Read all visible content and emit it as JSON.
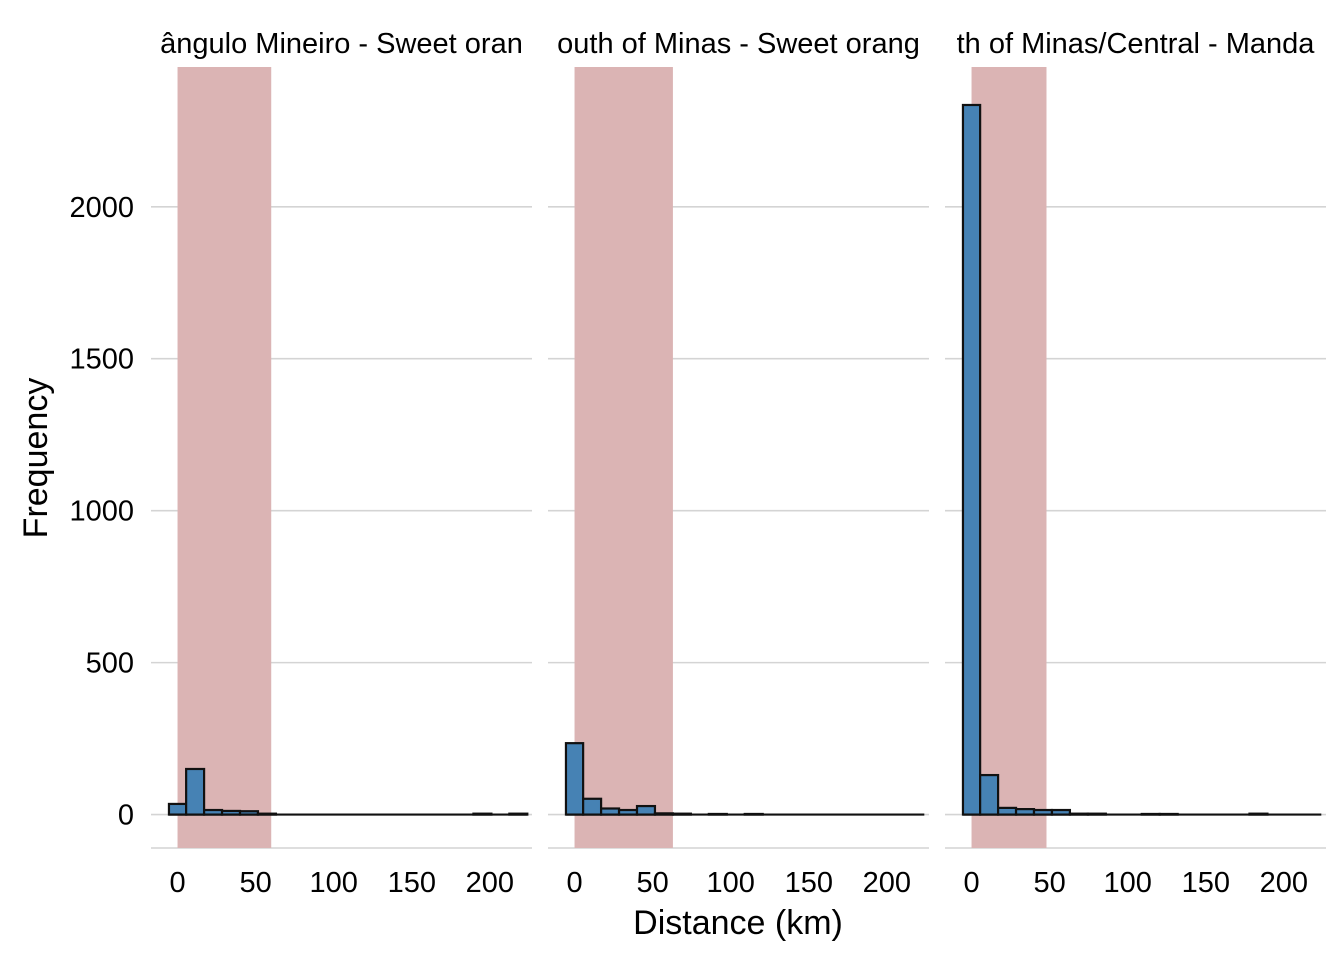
{
  "chart_data": {
    "type": "bar",
    "xlabel": "Distance (km)",
    "ylabel": "Frequency",
    "xlim": [
      -17,
      227
    ],
    "ylim": [
      -110,
      2460
    ],
    "x_ticks": [
      0,
      50,
      100,
      150,
      200
    ],
    "y_ticks": [
      0,
      500,
      1000,
      1500,
      2000
    ],
    "grid": true,
    "colors": {
      "bar_fill": "#4682B4",
      "highlight_band": "#DBB4B4"
    },
    "panels": [
      {
        "title": "Triângulo Mineiro - Sweet orange",
        "title_visible": "ângulo Mineiro - Sweet oran",
        "highlight_band": [
          0,
          60
        ],
        "bins": [
          {
            "x0": -5.5,
            "x1": 5.5,
            "count": 35
          },
          {
            "x0": 5.5,
            "x1": 17,
            "count": 150
          },
          {
            "x0": 17,
            "x1": 28.5,
            "count": 15
          },
          {
            "x0": 28.5,
            "x1": 40,
            "count": 12
          },
          {
            "x0": 40,
            "x1": 51.5,
            "count": 11
          },
          {
            "x0": 51.5,
            "x1": 63,
            "count": 3
          },
          {
            "x0": 63,
            "x1": 74.5,
            "count": 0
          },
          {
            "x0": 74.5,
            "x1": 86,
            "count": 0
          },
          {
            "x0": 86,
            "x1": 97.5,
            "count": 0
          },
          {
            "x0": 97.5,
            "x1": 109,
            "count": 0
          },
          {
            "x0": 109,
            "x1": 120.5,
            "count": 0
          },
          {
            "x0": 120.5,
            "x1": 132,
            "count": 0
          },
          {
            "x0": 132,
            "x1": 143.5,
            "count": 0
          },
          {
            "x0": 143.5,
            "x1": 155,
            "count": 0
          },
          {
            "x0": 155,
            "x1": 166.5,
            "count": 0
          },
          {
            "x0": 166.5,
            "x1": 178,
            "count": 0
          },
          {
            "x0": 178,
            "x1": 189.5,
            "count": 0
          },
          {
            "x0": 189.5,
            "x1": 201,
            "count": 3
          },
          {
            "x0": 201,
            "x1": 212.5,
            "count": 0
          },
          {
            "x0": 212.5,
            "x1": 224,
            "count": 3
          }
        ]
      },
      {
        "title": "South of Minas - Sweet orange",
        "title_visible": "outh of Minas - Sweet orang",
        "highlight_band": [
          0,
          63
        ],
        "bins": [
          {
            "x0": -5.5,
            "x1": 5.5,
            "count": 235
          },
          {
            "x0": 5.5,
            "x1": 17,
            "count": 52
          },
          {
            "x0": 17,
            "x1": 28.5,
            "count": 20
          },
          {
            "x0": 28.5,
            "x1": 40,
            "count": 15
          },
          {
            "x0": 40,
            "x1": 51.5,
            "count": 28
          },
          {
            "x0": 51.5,
            "x1": 63,
            "count": 4
          },
          {
            "x0": 63,
            "x1": 74.5,
            "count": 3
          },
          {
            "x0": 74.5,
            "x1": 86,
            "count": 0
          },
          {
            "x0": 86,
            "x1": 97.5,
            "count": 2
          },
          {
            "x0": 97.5,
            "x1": 109,
            "count": 0
          },
          {
            "x0": 109,
            "x1": 120.5,
            "count": 2
          },
          {
            "x0": 120.5,
            "x1": 132,
            "count": 0
          },
          {
            "x0": 132,
            "x1": 143.5,
            "count": 0
          },
          {
            "x0": 143.5,
            "x1": 155,
            "count": 0
          },
          {
            "x0": 155,
            "x1": 166.5,
            "count": 0
          },
          {
            "x0": 166.5,
            "x1": 178,
            "count": 0
          },
          {
            "x0": 178,
            "x1": 189.5,
            "count": 0
          },
          {
            "x0": 189.5,
            "x1": 201,
            "count": 0
          },
          {
            "x0": 201,
            "x1": 212.5,
            "count": 0
          },
          {
            "x0": 212.5,
            "x1": 224,
            "count": 0
          }
        ]
      },
      {
        "title": "North of Minas/Central - Mandarin",
        "title_visible": "th of Minas/Central - Manda",
        "highlight_band": [
          0,
          48
        ],
        "bins": [
          {
            "x0": -5.5,
            "x1": 5.5,
            "count": 2335
          },
          {
            "x0": 5.5,
            "x1": 17,
            "count": 130
          },
          {
            "x0": 17,
            "x1": 28.5,
            "count": 22
          },
          {
            "x0": 28.5,
            "x1": 40,
            "count": 18
          },
          {
            "x0": 40,
            "x1": 51.5,
            "count": 15
          },
          {
            "x0": 51.5,
            "x1": 63,
            "count": 15
          },
          {
            "x0": 63,
            "x1": 74.5,
            "count": 3
          },
          {
            "x0": 74.5,
            "x1": 86,
            "count": 3
          },
          {
            "x0": 86,
            "x1": 97.5,
            "count": 0
          },
          {
            "x0": 97.5,
            "x1": 109,
            "count": 0
          },
          {
            "x0": 109,
            "x1": 120.5,
            "count": 2
          },
          {
            "x0": 120.5,
            "x1": 132,
            "count": 2
          },
          {
            "x0": 132,
            "x1": 143.5,
            "count": 0
          },
          {
            "x0": 143.5,
            "x1": 155,
            "count": 0
          },
          {
            "x0": 155,
            "x1": 166.5,
            "count": 0
          },
          {
            "x0": 166.5,
            "x1": 178,
            "count": 0
          },
          {
            "x0": 178,
            "x1": 189.5,
            "count": 3
          },
          {
            "x0": 189.5,
            "x1": 201,
            "count": 0
          },
          {
            "x0": 201,
            "x1": 212.5,
            "count": 0
          },
          {
            "x0": 212.5,
            "x1": 224,
            "count": 0
          }
        ]
      }
    ]
  }
}
